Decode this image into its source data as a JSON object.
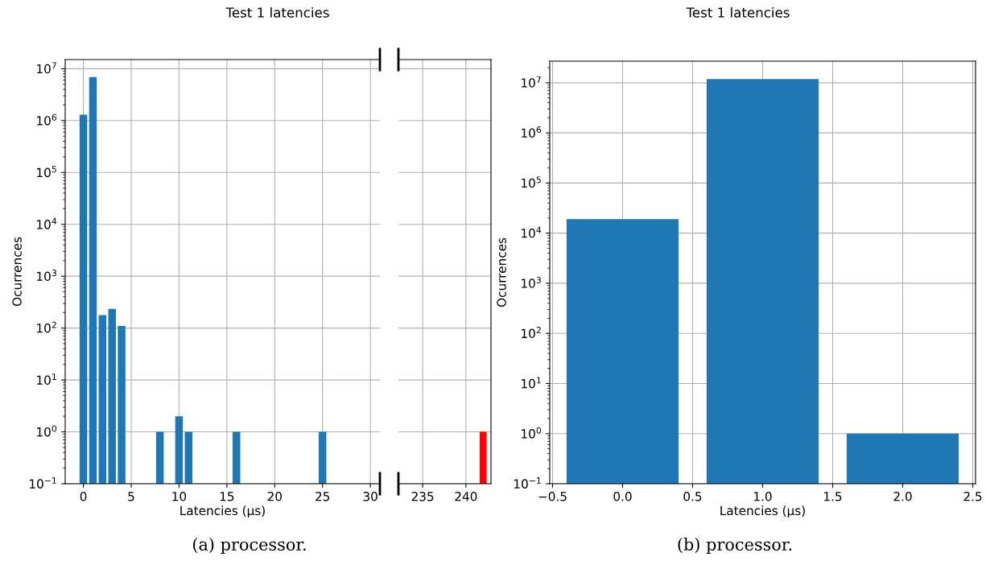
{
  "chart_data": [
    {
      "type": "bar",
      "title": "Test 1 latencies",
      "xlabel": "Latencies (µs)",
      "ylabel": "Ocurrences",
      "log": true,
      "grid": true,
      "x": [
        0,
        1,
        2,
        3,
        4,
        8,
        10,
        11,
        16,
        25
      ],
      "series": [
        {
          "color": "#1f77b4",
          "values": [
            1300000,
            6900000,
            178,
            235,
            110,
            1,
            2,
            1,
            1,
            1
          ]
        }
      ],
      "xlim": [
        -1.9,
        31
      ],
      "xticks": [
        0,
        5,
        10,
        15,
        20,
        25,
        30
      ],
      "ylim": [
        0.1,
        15000000
      ],
      "yticks": [
        {
          "value": 0.1,
          "label": "10$^{−1}$"
        },
        {
          "value": 1,
          "label": "10$^{0}$"
        },
        {
          "value": 10,
          "label": "10$^{1}$"
        },
        {
          "value": 100,
          "label": "10$^{2}$"
        },
        {
          "value": 1000,
          "label": "10$^{3}$"
        },
        {
          "value": 10000,
          "label": "10$^{4}$"
        },
        {
          "value": 100000,
          "label": "10$^{5}$"
        },
        {
          "value": 1000000,
          "label": "10$^{6}$"
        },
        {
          "value": 10000000,
          "label": "10$^{7}$"
        }
      ],
      "annotations": [
        "(a) processor."
      ]
    },
    {
      "type": "bar",
      "log": true,
      "grid": true,
      "tick_labels": "x",
      "x": [
        242
      ],
      "series": [
        {
          "color": "#ff0000",
          "values": [
            1
          ]
        }
      ],
      "xlim": [
        232.2,
        242.9
      ],
      "xticks": [
        235,
        240
      ],
      "ylim": [
        0.1,
        15000000
      ]
    },
    {
      "type": "bar",
      "title": "Test 1 latencies",
      "xlabel": "Latencies (µs)",
      "ylabel": "Ocurrences",
      "log": true,
      "grid": true,
      "x": [
        0,
        1,
        2
      ],
      "series": [
        {
          "color": "#1f77b4",
          "values": [
            19000,
            11900000,
            1
          ]
        }
      ],
      "xlim": [
        -0.52,
        2.52
      ],
      "xticks": [
        {
          "value": -0.5,
          "label": "−0.5"
        },
        {
          "value": 0,
          "label": "0.0"
        },
        {
          "value": 0.5,
          "label": "0.5"
        },
        {
          "value": 1,
          "label": "1.0"
        },
        {
          "value": 1.5,
          "label": "1.5"
        },
        {
          "value": 2,
          "label": "2.0"
        },
        {
          "value": 2.5,
          "label": "2.5"
        }
      ],
      "ylim": [
        0.1,
        27000000
      ],
      "yticks": [
        {
          "value": 0.1,
          "label": "10$^{−1}$"
        },
        {
          "value": 1,
          "label": "10$^{0}$"
        },
        {
          "value": 10,
          "label": "10$^{1}$"
        },
        {
          "value": 100,
          "label": "10$^{2}$"
        },
        {
          "value": 1000,
          "label": "10$^{3}$"
        },
        {
          "value": 10000,
          "label": "10$^{4}$"
        },
        {
          "value": 100000,
          "label": "10$^{5}$"
        },
        {
          "value": 1000000,
          "label": "10$^{6}$"
        },
        {
          "value": 10000000,
          "label": "10$^{7}$"
        }
      ],
      "annotations": [
        "(b) processor."
      ]
    }
  ]
}
